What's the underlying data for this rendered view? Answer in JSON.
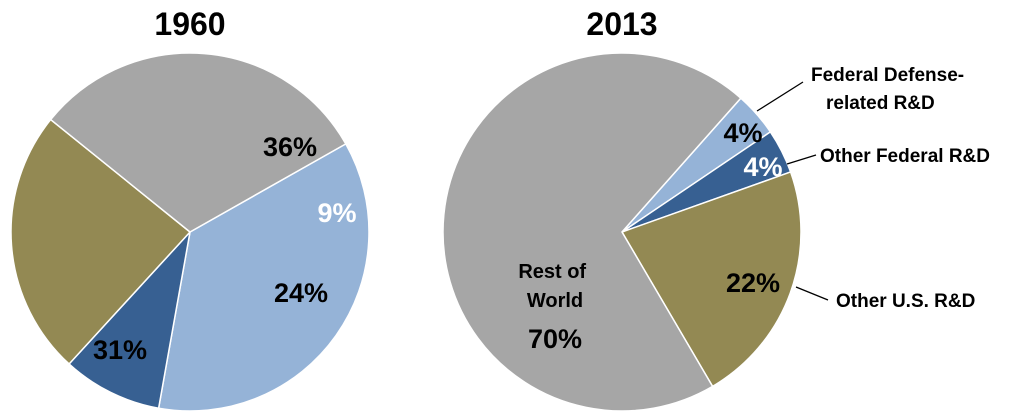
{
  "chart_data": [
    {
      "type": "pie",
      "title": "1960",
      "slices": [
        {
          "label": "",
          "value": 36,
          "display": "36%",
          "color": "#95b3d7"
        },
        {
          "label": "",
          "value": 9,
          "display": "9%",
          "color": "#376092"
        },
        {
          "label": "",
          "value": 24,
          "display": "24%",
          "color": "#938953"
        },
        {
          "label": "",
          "value": 31,
          "display": "31%",
          "color": "#a6a6a6"
        }
      ]
    },
    {
      "type": "pie",
      "title": "2013",
      "slices": [
        {
          "label": "Federal Defense-related R&D",
          "value": 4,
          "display": "4%",
          "color": "#95b3d7"
        },
        {
          "label": "Other Federal R&D",
          "value": 4,
          "display": "4%",
          "color": "#376092"
        },
        {
          "label": "Other U.S. R&D",
          "value": 22,
          "display": "22%",
          "color": "#938953"
        },
        {
          "label": "Rest of World",
          "value": 70,
          "display": "70%",
          "color": "#a6a6a6"
        }
      ]
    }
  ]
}
